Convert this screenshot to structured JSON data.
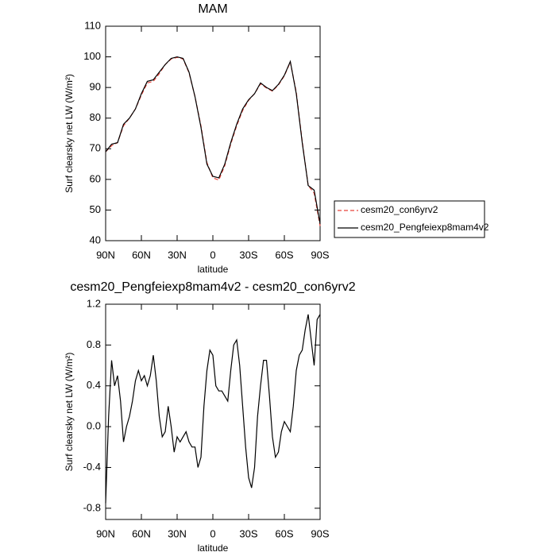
{
  "chart_data": [
    {
      "type": "line",
      "title": "MAM",
      "xlabel": "latitude",
      "ylabel": "Surf clearsky net LW (W/m²)",
      "x": [
        90,
        85,
        80,
        75,
        70,
        65,
        60,
        55,
        50,
        45,
        40,
        35,
        30,
        25,
        20,
        15,
        10,
        5,
        0,
        -5,
        -10,
        -15,
        -20,
        -25,
        -30,
        -35,
        -40,
        -45,
        -50,
        -55,
        -60,
        -65,
        -70,
        -75,
        -80,
        -85,
        -90
      ],
      "series": [
        {
          "name": "cesm20_con6yrv2",
          "color": "#e8443a",
          "style": "dashed",
          "values": [
            69,
            71,
            72,
            77.5,
            80,
            83,
            87.5,
            91.5,
            92,
            94.5,
            97.5,
            99.3,
            99.8,
            99.3,
            94.8,
            87,
            77.5,
            65.5,
            60.5,
            59.8,
            64.5,
            71.5,
            77.5,
            82.5,
            85.8,
            88,
            91.2,
            89.8,
            88.8,
            90.8,
            93.8,
            98.3,
            88.5,
            72.5,
            58,
            55.5,
            44.8
          ]
        },
        {
          "name": "cesm20_Pengfeiexp8mam4v2",
          "color": "#000000",
          "style": "solid",
          "values": [
            69,
            71.5,
            72,
            78,
            80,
            83,
            88,
            92,
            92.5,
            95,
            97.5,
            99.5,
            100,
            99.5,
            95,
            87,
            77,
            65,
            61,
            60.5,
            65,
            72,
            78,
            83,
            86,
            88,
            91.5,
            90,
            89,
            91,
            94,
            98.5,
            88,
            72,
            58,
            56.5,
            45.5
          ]
        }
      ],
      "xlim": [
        90,
        -90
      ],
      "xticks": [
        {
          "value": 90,
          "label": "90N"
        },
        {
          "value": 60,
          "label": "60N"
        },
        {
          "value": 30,
          "label": "30N"
        },
        0,
        {
          "value": -30,
          "label": "30S"
        },
        {
          "value": -60,
          "label": "60S"
        },
        {
          "value": -90,
          "label": "90S"
        }
      ],
      "ylim": [
        40,
        110
      ],
      "yticks": [
        40,
        50,
        60,
        70,
        80,
        90,
        100,
        110
      ],
      "legend": "right"
    },
    {
      "type": "line",
      "title": "cesm20_Pengfeiexp8mam4v2 - cesm20_con6yrv2",
      "xlabel": "latitude",
      "ylabel": "Surf clearsky net LW (W/m²)",
      "x": [
        90,
        87.5,
        85,
        82.5,
        80,
        77.5,
        75,
        72.5,
        70,
        67.5,
        65,
        62.5,
        60,
        57.5,
        55,
        52.5,
        50,
        47.5,
        45,
        42.5,
        40,
        37.5,
        35,
        32.5,
        30,
        27.5,
        25,
        22.5,
        20,
        17.5,
        15,
        12.5,
        10,
        7.5,
        5,
        2.5,
        0,
        -2.5,
        -5,
        -7.5,
        -10,
        -12.5,
        -15,
        -17.5,
        -20,
        -22.5,
        -25,
        -27.5,
        -30,
        -32.5,
        -35,
        -37.5,
        -40,
        -42.5,
        -45,
        -47.5,
        -50,
        -52.5,
        -55,
        -57.5,
        -60,
        -62.5,
        -65,
        -67.5,
        -70,
        -72.5,
        -75,
        -77.5,
        -80,
        -82.5,
        -85,
        -87.5,
        -90
      ],
      "values": [
        -0.75,
        0.1,
        0.65,
        0.4,
        0.5,
        0.25,
        -0.15,
        0,
        0.1,
        0.25,
        0.45,
        0.55,
        0.45,
        0.5,
        0.4,
        0.5,
        0.7,
        0.45,
        0.1,
        -0.1,
        -0.05,
        0.2,
        0,
        -0.25,
        -0.1,
        -0.15,
        -0.1,
        -0.05,
        -0.15,
        -0.2,
        -0.2,
        -0.4,
        -0.3,
        0.2,
        0.55,
        0.75,
        0.7,
        0.4,
        0.35,
        0.35,
        0.3,
        0.25,
        0.55,
        0.8,
        0.85,
        0.6,
        0.2,
        -0.2,
        -0.5,
        -0.6,
        -0.4,
        0.1,
        0.4,
        0.65,
        0.65,
        0.3,
        -0.1,
        -0.3,
        -0.25,
        -0.05,
        0.05,
        0,
        -0.05,
        0.2,
        0.55,
        0.7,
        0.75,
        0.95,
        1.1,
        0.85,
        0.6,
        1.05,
        1.1
      ],
      "color": "#000000",
      "xlim": [
        90,
        -90
      ],
      "xticks": [
        {
          "value": 90,
          "label": "90N"
        },
        {
          "value": 60,
          "label": "60N"
        },
        {
          "value": 30,
          "label": "30N"
        },
        0,
        {
          "value": -30,
          "label": "30S"
        },
        {
          "value": -60,
          "label": "60S"
        },
        {
          "value": -90,
          "label": "90S"
        }
      ],
      "ylim": [
        -0.91,
        1.2
      ],
      "yticks": [
        -0.8,
        -0.4,
        {
          "value": 0,
          "label": "0.0"
        },
        0.4,
        0.8,
        1.2
      ]
    }
  ]
}
